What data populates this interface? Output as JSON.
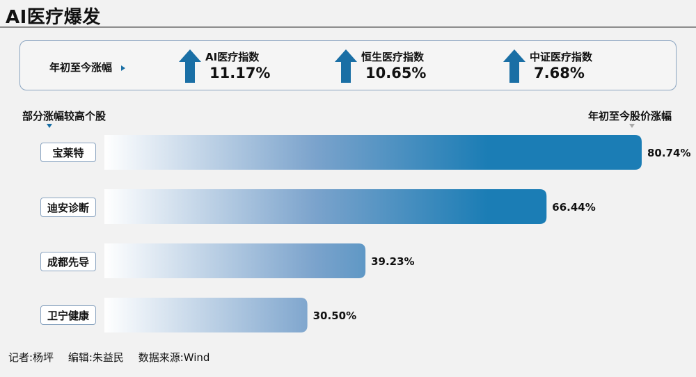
{
  "title": "AI医疗爆发",
  "summary": {
    "label": "年初至今涨幅",
    "indices": [
      {
        "name": "AI医疗指数",
        "value": "11.17%",
        "icon": "up-arrow-icon"
      },
      {
        "name": "恒生医疗指数",
        "value": "10.65%",
        "icon": "up-arrow-icon"
      },
      {
        "name": "中证医疗指数",
        "value": "7.68%",
        "icon": "up-arrow-icon"
      }
    ]
  },
  "left_header": "部分涨幅较高个股",
  "right_header": "年初至今股价涨幅",
  "colors": {
    "bar_dark": "#1b7db5",
    "bar_light": "#ffffff",
    "box_border": "#8aa4c0",
    "arrow": "#1a6fa5"
  },
  "chart_data": {
    "type": "bar",
    "orientation": "horizontal",
    "categories": [
      "宝莱特",
      "迪安诊断",
      "成都先导",
      "卫宁健康"
    ],
    "values": [
      80.74,
      66.44,
      39.23,
      30.5
    ],
    "value_labels": [
      "80.74%",
      "66.44%",
      "39.23%",
      "30.50%"
    ],
    "unit": "%",
    "xlim": [
      0,
      80.74
    ]
  },
  "footer": {
    "reporter": "记者:杨坪",
    "editor": "编辑:朱益民",
    "source": "数据来源:Wind"
  }
}
